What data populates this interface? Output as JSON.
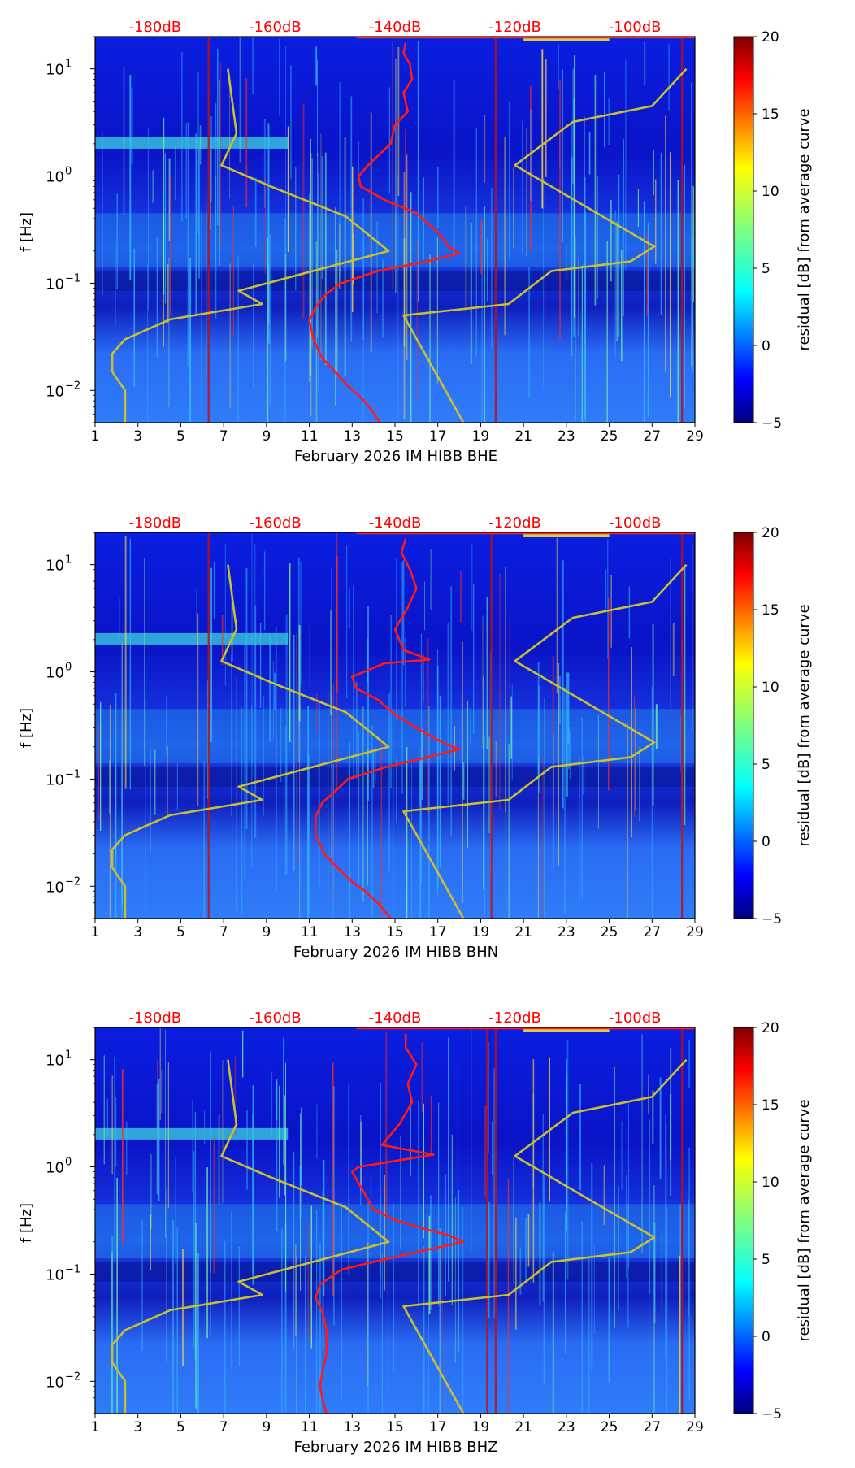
{
  "figure": {
    "title": "",
    "colorbar": {
      "label": "residual [dB] from average curve",
      "ticks": [
        20,
        15,
        10,
        5,
        0,
        -5
      ],
      "range": [
        -5,
        20
      ],
      "colormap": "jet"
    }
  },
  "chart_data": [
    {
      "type": "heatmap",
      "panel": "BHE",
      "xlabel": "February 2026 IM HIBB  BHE",
      "ylabel": "f [Hz]",
      "xlim": [
        1,
        29
      ],
      "ylim": [
        0.005,
        20
      ],
      "yscale": "log",
      "x_ticks": [
        "1",
        "3",
        "5",
        "7",
        "9",
        "11",
        "13",
        "15",
        "17",
        "19",
        "21",
        "23",
        "25",
        "27",
        "29"
      ],
      "y_ticks": [
        {
          "value": 10,
          "base": "10",
          "exp": "1"
        },
        {
          "value": 1,
          "base": "10",
          "exp": "0"
        },
        {
          "value": 0.1,
          "base": "10",
          "exp": "−1"
        },
        {
          "value": 0.01,
          "base": "10",
          "exp": "−2"
        }
      ],
      "top_axis_labels": [
        "-180dB",
        "-160dB",
        "-140dB",
        "-120dB",
        "-100dB"
      ],
      "top_axis_label_days": [
        3.8,
        9.4,
        15.0,
        20.6,
        26.2
      ],
      "red_day_lines": [
        6.3,
        19.7,
        28.4
      ],
      "series": [
        {
          "name": "average PSD (red)",
          "color": "#ff1a1a",
          "points": [
            [
              14.3,
              0.005
            ],
            [
              13.8,
              0.007
            ],
            [
              13.3,
              0.009
            ],
            [
              12.8,
              0.011
            ],
            [
              12.2,
              0.015
            ],
            [
              11.6,
              0.02
            ],
            [
              11.2,
              0.03
            ],
            [
              11.0,
              0.045
            ],
            [
              11.3,
              0.06
            ],
            [
              11.8,
              0.08
            ],
            [
              12.5,
              0.1
            ],
            [
              14.2,
              0.13
            ],
            [
              16.5,
              0.16
            ],
            [
              18.0,
              0.19
            ],
            [
              17.5,
              0.22
            ],
            [
              17.0,
              0.3
            ],
            [
              16.0,
              0.45
            ],
            [
              14.5,
              0.6
            ],
            [
              13.4,
              0.8
            ],
            [
              13.3,
              1.0
            ],
            [
              13.8,
              1.3
            ],
            [
              14.8,
              2.0
            ],
            [
              15.0,
              3.0
            ],
            [
              15.6,
              4.0
            ],
            [
              15.4,
              6.0
            ],
            [
              15.8,
              8.0
            ],
            [
              15.7,
              11.0
            ],
            [
              15.4,
              14.0
            ],
            [
              15.5,
              17.5
            ]
          ]
        },
        {
          "name": "model curve (yellow)",
          "color": "#c8c030",
          "points": [
            [
              2.4,
              0.005
            ],
            [
              2.4,
              0.01
            ],
            [
              2.0,
              0.013
            ],
            [
              1.8,
              0.015
            ],
            [
              1.8,
              0.022
            ],
            [
              2.4,
              0.03
            ],
            [
              4.5,
              0.046
            ],
            [
              8.8,
              0.064
            ],
            [
              7.7,
              0.085
            ],
            [
              14.7,
              0.2
            ],
            [
              12.7,
              0.42
            ],
            [
              9.2,
              0.8
            ],
            [
              6.9,
              1.26
            ],
            [
              7.6,
              2.5
            ],
            [
              7.2,
              10.0
            ]
          ]
        },
        {
          "name": "model curve (yellow) right",
          "color": "#c8c030",
          "points": [
            [
              18.2,
              0.005
            ],
            [
              15.4,
              0.05
            ],
            [
              20.3,
              0.064
            ],
            [
              22.3,
              0.13
            ],
            [
              26.0,
              0.16
            ],
            [
              27.1,
              0.22
            ],
            [
              20.6,
              1.26
            ],
            [
              23.3,
              3.2
            ],
            [
              27.0,
              4.5
            ],
            [
              28.6,
              10.0
            ]
          ]
        }
      ]
    },
    {
      "type": "heatmap",
      "panel": "BHN",
      "xlabel": "February 2026 IM HIBB  BHN",
      "ylabel": "f [Hz]",
      "xlim": [
        1,
        29
      ],
      "ylim": [
        0.005,
        20
      ],
      "yscale": "log",
      "x_ticks": [
        "1",
        "3",
        "5",
        "7",
        "9",
        "11",
        "13",
        "15",
        "17",
        "19",
        "21",
        "23",
        "25",
        "27",
        "29"
      ],
      "y_ticks": [
        {
          "value": 10,
          "base": "10",
          "exp": "1"
        },
        {
          "value": 1,
          "base": "10",
          "exp": "0"
        },
        {
          "value": 0.1,
          "base": "10",
          "exp": "−1"
        },
        {
          "value": 0.01,
          "base": "10",
          "exp": "−2"
        }
      ],
      "top_axis_labels": [
        "-180dB",
        "-160dB",
        "-140dB",
        "-120dB",
        "-100dB"
      ],
      "top_axis_label_days": [
        3.8,
        9.4,
        15.0,
        20.6,
        26.2
      ],
      "red_day_lines": [
        6.3,
        19.5,
        28.4
      ],
      "series": [
        {
          "name": "average PSD (red)",
          "color": "#ff1a1a",
          "points": [
            [
              14.8,
              0.005
            ],
            [
              14.2,
              0.007
            ],
            [
              13.6,
              0.009
            ],
            [
              13.0,
              0.011
            ],
            [
              12.3,
              0.015
            ],
            [
              11.7,
              0.02
            ],
            [
              11.3,
              0.03
            ],
            [
              11.3,
              0.045
            ],
            [
              11.6,
              0.06
            ],
            [
              12.3,
              0.08
            ],
            [
              12.8,
              0.1
            ],
            [
              14.6,
              0.13
            ],
            [
              16.5,
              0.16
            ],
            [
              18.0,
              0.19
            ],
            [
              17.2,
              0.22
            ],
            [
              16.0,
              0.3
            ],
            [
              15.0,
              0.4
            ],
            [
              14.2,
              0.55
            ],
            [
              13.2,
              0.7
            ],
            [
              13.0,
              0.9
            ],
            [
              14.5,
              1.2
            ],
            [
              16.6,
              1.3
            ],
            [
              15.4,
              1.6
            ],
            [
              15.0,
              2.5
            ],
            [
              15.6,
              4.0
            ],
            [
              16.0,
              6.0
            ],
            [
              15.7,
              9.0
            ],
            [
              15.3,
              13.0
            ],
            [
              15.5,
              17.5
            ]
          ]
        },
        {
          "name": "model curve (yellow)",
          "color": "#c8c030",
          "points": [
            [
              2.4,
              0.005
            ],
            [
              2.4,
              0.01
            ],
            [
              2.0,
              0.013
            ],
            [
              1.8,
              0.015
            ],
            [
              1.8,
              0.022
            ],
            [
              2.4,
              0.03
            ],
            [
              4.5,
              0.046
            ],
            [
              8.8,
              0.064
            ],
            [
              7.7,
              0.085
            ],
            [
              14.7,
              0.2
            ],
            [
              12.7,
              0.42
            ],
            [
              9.2,
              0.8
            ],
            [
              6.9,
              1.26
            ],
            [
              7.6,
              2.5
            ],
            [
              7.2,
              10.0
            ]
          ]
        },
        {
          "name": "model curve (yellow) right",
          "color": "#c8c030",
          "points": [
            [
              18.2,
              0.005
            ],
            [
              15.4,
              0.05
            ],
            [
              20.3,
              0.064
            ],
            [
              22.3,
              0.13
            ],
            [
              26.0,
              0.16
            ],
            [
              27.1,
              0.22
            ],
            [
              20.6,
              1.26
            ],
            [
              23.3,
              3.2
            ],
            [
              27.0,
              4.5
            ],
            [
              28.6,
              10.0
            ]
          ]
        }
      ]
    },
    {
      "type": "heatmap",
      "panel": "BHZ",
      "xlabel": "February 2026 IM HIBB  BHZ",
      "ylabel": "f [Hz]",
      "xlim": [
        1,
        29
      ],
      "ylim": [
        0.005,
        20
      ],
      "yscale": "log",
      "x_ticks": [
        "1",
        "3",
        "5",
        "7",
        "9",
        "11",
        "13",
        "15",
        "17",
        "19",
        "21",
        "23",
        "25",
        "27",
        "29"
      ],
      "y_ticks": [
        {
          "value": 10,
          "base": "10",
          "exp": "1"
        },
        {
          "value": 1,
          "base": "10",
          "exp": "0"
        },
        {
          "value": 0.1,
          "base": "10",
          "exp": "−1"
        },
        {
          "value": 0.01,
          "base": "10",
          "exp": "−2"
        }
      ],
      "top_axis_labels": [
        "-180dB",
        "-160dB",
        "-140dB",
        "-120dB",
        "-100dB"
      ],
      "top_axis_label_days": [
        3.8,
        9.4,
        15.0,
        20.6,
        26.2
      ],
      "red_day_lines": [
        19.3,
        19.7,
        28.4
      ],
      "series": [
        {
          "name": "average PSD (red)",
          "color": "#ff1a1a",
          "points": [
            [
              11.8,
              0.005
            ],
            [
              11.6,
              0.007
            ],
            [
              11.5,
              0.009
            ],
            [
              11.6,
              0.012
            ],
            [
              11.8,
              0.018
            ],
            [
              11.8,
              0.03
            ],
            [
              11.6,
              0.045
            ],
            [
              11.3,
              0.06
            ],
            [
              11.5,
              0.08
            ],
            [
              12.5,
              0.11
            ],
            [
              14.0,
              0.13
            ],
            [
              16.0,
              0.16
            ],
            [
              18.2,
              0.2
            ],
            [
              17.5,
              0.23
            ],
            [
              16.5,
              0.26
            ],
            [
              15.0,
              0.32
            ],
            [
              14.0,
              0.4
            ],
            [
              13.5,
              0.6
            ],
            [
              13.0,
              0.9
            ],
            [
              13.3,
              1.0
            ],
            [
              16.8,
              1.3
            ],
            [
              14.4,
              1.6
            ],
            [
              15.2,
              2.5
            ],
            [
              15.8,
              4.0
            ],
            [
              15.6,
              6.0
            ],
            [
              16.0,
              9.0
            ],
            [
              15.5,
              13.0
            ],
            [
              15.5,
              17.5
            ]
          ]
        },
        {
          "name": "model curve (yellow)",
          "color": "#c8c030",
          "points": [
            [
              2.4,
              0.005
            ],
            [
              2.4,
              0.01
            ],
            [
              2.0,
              0.013
            ],
            [
              1.8,
              0.015
            ],
            [
              1.8,
              0.022
            ],
            [
              2.4,
              0.03
            ],
            [
              4.5,
              0.046
            ],
            [
              8.8,
              0.064
            ],
            [
              7.7,
              0.085
            ],
            [
              14.7,
              0.2
            ],
            [
              12.7,
              0.42
            ],
            [
              9.2,
              0.8
            ],
            [
              6.9,
              1.26
            ],
            [
              7.6,
              2.5
            ],
            [
              7.2,
              10.0
            ]
          ]
        },
        {
          "name": "model curve (yellow) right",
          "color": "#c8c030",
          "points": [
            [
              18.2,
              0.005
            ],
            [
              15.4,
              0.05
            ],
            [
              20.3,
              0.064
            ],
            [
              22.3,
              0.13
            ],
            [
              26.0,
              0.16
            ],
            [
              27.1,
              0.22
            ],
            [
              20.6,
              1.26
            ],
            [
              23.3,
              3.2
            ],
            [
              27.0,
              4.5
            ],
            [
              28.6,
              10.0
            ]
          ]
        }
      ]
    }
  ]
}
